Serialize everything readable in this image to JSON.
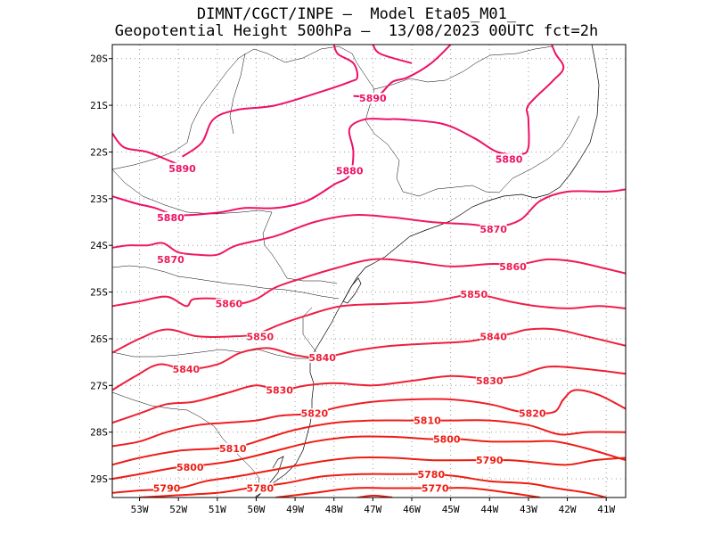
{
  "title_line1": "DIMNT/CGCT/INPE –  Model Eta05_M01_",
  "title_line2": "Geopotential Height 500hPa –  13/08/2023 00UTC fct=2h",
  "chart_data": {
    "type": "contour",
    "variable": "Geopotential Height 500hPa",
    "lon_range": [
      -53.7,
      -40.5
    ],
    "lat_range": [
      -29.4,
      -19.7
    ],
    "grid": true,
    "x_ticks": [
      "53W",
      "52W",
      "51W",
      "50W",
      "49W",
      "48W",
      "47W",
      "46W",
      "45W",
      "44W",
      "43W",
      "42W",
      "41W"
    ],
    "y_ticks": [
      "20S",
      "21S",
      "22S",
      "23S",
      "24S",
      "25S",
      "26S",
      "27S",
      "28S",
      "29S"
    ],
    "contour_levels": [
      5770,
      5780,
      5790,
      5800,
      5810,
      5820,
      5830,
      5840,
      5850,
      5860,
      5870,
      5880,
      5890
    ],
    "colors": {
      "5890": "#ee1166",
      "5880": "#ee1166",
      "5870": "#ee1a5c",
      "5860": "#ee1c52",
      "5850": "#ee1e48",
      "5840": "#ee1f3c",
      "5830": "#ee1f30",
      "5820": "#ee1e24",
      "5810": "#ee1e1a",
      "5800": "#ee1c14",
      "5790": "#ee1c10",
      "5780": "#ee1c10",
      "5770": "#ee1c10"
    },
    "contour_labels": [
      {
        "level": 5890,
        "lon": -51.9,
        "lat": -22.35
      },
      {
        "level": 5890,
        "lon": -47.0,
        "lat": -20.85
      },
      {
        "level": 5880,
        "lon": -47.6,
        "lat": -22.4
      },
      {
        "level": 5880,
        "lon": -43.5,
        "lat": -22.15
      },
      {
        "level": 5880,
        "lon": -52.2,
        "lat": -23.4
      },
      {
        "level": 5870,
        "lon": -52.2,
        "lat": -24.3
      },
      {
        "level": 5870,
        "lon": -43.9,
        "lat": -23.65
      },
      {
        "level": 5860,
        "lon": -50.7,
        "lat": -25.25
      },
      {
        "level": 5860,
        "lon": -43.4,
        "lat": -24.45
      },
      {
        "level": 5850,
        "lon": -49.9,
        "lat": -25.95
      },
      {
        "level": 5850,
        "lon": -44.4,
        "lat": -25.05
      },
      {
        "level": 5840,
        "lon": -51.8,
        "lat": -26.65
      },
      {
        "level": 5840,
        "lon": -48.3,
        "lat": -26.4
      },
      {
        "level": 5840,
        "lon": -43.9,
        "lat": -25.95
      },
      {
        "level": 5830,
        "lon": -49.4,
        "lat": -27.1
      },
      {
        "level": 5830,
        "lon": -44.0,
        "lat": -26.9
      },
      {
        "level": 5820,
        "lon": -48.5,
        "lat": -27.6
      },
      {
        "level": 5820,
        "lon": -42.9,
        "lat": -27.6
      },
      {
        "level": 5810,
        "lon": -50.6,
        "lat": -28.35
      },
      {
        "level": 5810,
        "lon": -45.6,
        "lat": -27.75
      },
      {
        "level": 5800,
        "lon": -51.7,
        "lat": -28.75
      },
      {
        "level": 5800,
        "lon": -45.1,
        "lat": -28.15
      },
      {
        "level": 5790,
        "lon": -52.3,
        "lat": -29.2
      },
      {
        "level": 5790,
        "lon": -44.0,
        "lat": -28.6
      },
      {
        "level": 5780,
        "lon": -49.9,
        "lat": -29.2
      },
      {
        "level": 5780,
        "lon": -45.5,
        "lat": -28.9
      },
      {
        "level": 5770,
        "lon": -45.4,
        "lat": -29.2
      }
    ]
  }
}
